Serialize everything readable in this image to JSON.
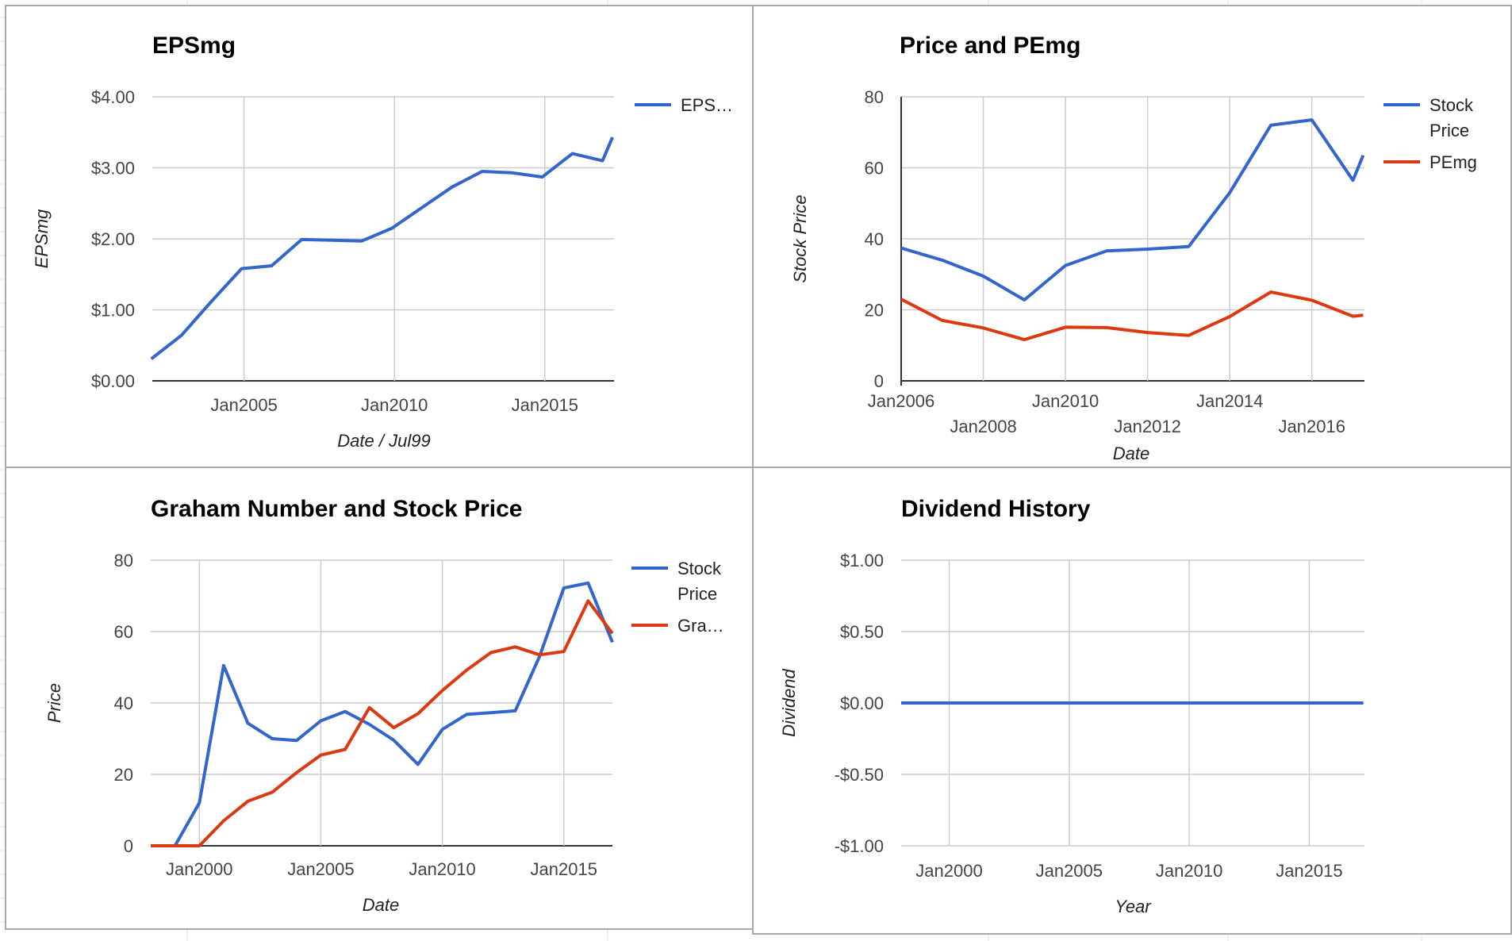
{
  "colors": {
    "blue": "#3366cc",
    "red": "#dc3912",
    "grid": "#cccccc",
    "axis": "#333333"
  },
  "chart_data": [
    {
      "type": "line",
      "title": "EPSmg",
      "xlabel": "Date / Jul99",
      "ylabel": "EPSmg",
      "ylim": [
        0,
        4
      ],
      "yticks": [
        "$0.00",
        "$1.00",
        "$2.00",
        "$3.00",
        "$4.00"
      ],
      "xticks": [
        "Jan2005",
        "Jan2010",
        "Jan2015"
      ],
      "grid": true,
      "legend_position": "right",
      "series": [
        {
          "name": "EPS…",
          "color": "#3366cc",
          "x": [
            "2001-12",
            "2002-12",
            "2003-12",
            "2004-12",
            "2005-12",
            "2006-12",
            "2007-12",
            "2008-12",
            "2009-12",
            "2010-12",
            "2011-12",
            "2012-12",
            "2013-12",
            "2014-12",
            "2015-12",
            "2016-12",
            "2017-04"
          ],
          "y": [
            0.31,
            0.64,
            1.12,
            1.58,
            1.62,
            1.99,
            1.98,
            1.97,
            2.15,
            2.44,
            2.73,
            2.95,
            2.93,
            2.87,
            3.2,
            3.1,
            3.43
          ]
        }
      ]
    },
    {
      "type": "line",
      "title": "Price and PEmg",
      "xlabel": "Date",
      "ylabel": "Stock Price",
      "ylim": [
        0,
        80
      ],
      "yticks": [
        "0",
        "20",
        "40",
        "60",
        "80"
      ],
      "xticks": [
        "Jan2006",
        "Jan2008",
        "Jan2010",
        "Jan2012",
        "Jan2014",
        "Jan2016"
      ],
      "grid": true,
      "legend_position": "right",
      "series": [
        {
          "name": "Stock Price",
          "color": "#3366cc",
          "x": [
            "2006-01",
            "2007-01",
            "2008-01",
            "2009-01",
            "2010-01",
            "2011-01",
            "2012-01",
            "2013-01",
            "2014-01",
            "2015-01",
            "2016-01",
            "2017-01",
            "2017-04"
          ],
          "y": [
            37.4,
            34.0,
            29.5,
            22.8,
            32.5,
            36.6,
            37.1,
            37.8,
            53.0,
            72.0,
            73.5,
            56.5,
            63.5
          ]
        },
        {
          "name": "PEmg",
          "color": "#dc3912",
          "x": [
            "2006-01",
            "2007-01",
            "2008-01",
            "2009-01",
            "2010-01",
            "2011-01",
            "2012-01",
            "2013-01",
            "2014-01",
            "2015-01",
            "2016-01",
            "2017-01",
            "2017-04"
          ],
          "y": [
            23.0,
            17.0,
            14.9,
            11.6,
            15.1,
            15.0,
            13.6,
            12.8,
            18.1,
            25.0,
            22.7,
            18.2,
            18.5
          ]
        }
      ]
    },
    {
      "type": "line",
      "title": "Graham Number and Stock Price",
      "xlabel": "Date",
      "ylabel": "Price",
      "ylim": [
        0,
        80
      ],
      "yticks": [
        "0",
        "20",
        "40",
        "60",
        "80"
      ],
      "xticks": [
        "Jan2000",
        "Jan2005",
        "Jan2010",
        "Jan2015"
      ],
      "grid": true,
      "legend_position": "right",
      "series": [
        {
          "name": "Stock Price",
          "color": "#3366cc",
          "x": [
            "1998-01",
            "1999-01",
            "2000-01",
            "2001-01",
            "2002-01",
            "2003-01",
            "2004-01",
            "2005-01",
            "2006-01",
            "2007-01",
            "2008-01",
            "2009-01",
            "2010-01",
            "2011-01",
            "2012-01",
            "2013-01",
            "2014-01",
            "2015-01",
            "2016-01",
            "2017-01"
          ],
          "y": [
            0,
            0,
            12,
            50.5,
            34.3,
            30.0,
            29.5,
            35.0,
            37.6,
            34.0,
            29.6,
            22.8,
            32.6,
            36.8,
            37.3,
            37.8,
            53.0,
            72.2,
            73.6,
            57.0
          ]
        },
        {
          "name": "Gra…",
          "color": "#dc3912",
          "x": [
            "1998-01",
            "1999-01",
            "2000-01",
            "2001-01",
            "2002-01",
            "2003-01",
            "2004-01",
            "2005-01",
            "2006-01",
            "2007-01",
            "2008-01",
            "2009-01",
            "2010-01",
            "2011-01",
            "2012-01",
            "2013-01",
            "2014-01",
            "2015-01",
            "2016-01",
            "2017-01"
          ],
          "y": [
            0,
            0,
            0,
            7,
            12.5,
            15,
            20.5,
            25.4,
            27,
            38.7,
            33.1,
            37,
            43.5,
            49.2,
            54.1,
            55.7,
            53.5,
            54.4,
            68.6,
            59.5
          ]
        }
      ]
    },
    {
      "type": "line",
      "title": "Dividend History",
      "xlabel": "Year",
      "ylabel": "Dividend",
      "ylim": [
        -1,
        1
      ],
      "yticks": [
        "-$1.00",
        "-$0.50",
        "$0.00",
        "$0.50",
        "$1.00"
      ],
      "xticks": [
        "Jan2000",
        "Jan2005",
        "Jan2010",
        "Jan2015"
      ],
      "grid": true,
      "legend_position": "none",
      "series": [
        {
          "name": "",
          "color": "#3366cc",
          "x": [
            "1998-01",
            "2017-04"
          ],
          "y": [
            0,
            0
          ]
        }
      ]
    }
  ]
}
